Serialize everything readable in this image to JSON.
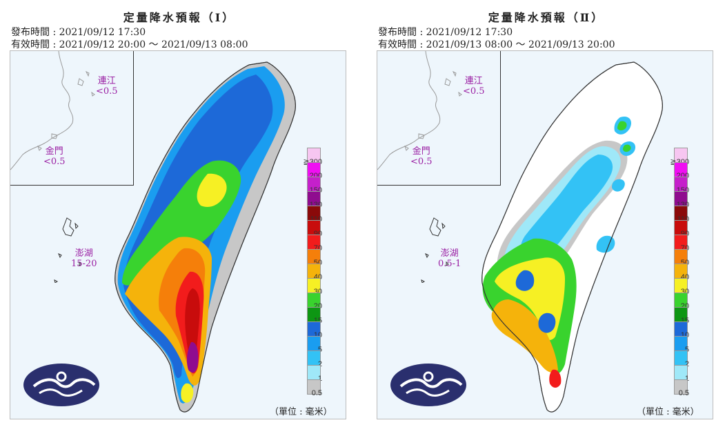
{
  "panels": [
    {
      "title": "定量降水預報（Ⅰ）",
      "issue": "發布時間 : 2021/09/12 17:30",
      "valid": "有效時間 : 2021/09/12 20:00 ～ 2021/09/13 08:00",
      "matsu_name": "連江",
      "matsu_value": "<0.5",
      "kinmen_name": "金門",
      "kinmen_value": "<0.5",
      "penghu_name": "澎湖",
      "penghu_value": "15-20",
      "unit": "（單位 : 毫米）"
    },
    {
      "title": "定量降水預報（Ⅱ）",
      "issue": "發布時間 : 2021/09/12 17:30",
      "valid": "有效時間 : 2021/09/13 08:00 ～ 2021/09/13 20:00",
      "matsu_name": "連江",
      "matsu_value": "<0.5",
      "kinmen_name": "金門",
      "kinmen_value": "<0.5",
      "penghu_name": "澎湖",
      "penghu_value": "0.5-1",
      "unit": "（單位 : 毫米）"
    }
  ],
  "legend": {
    "labels": [
      "≧300",
      "200",
      "150",
      "130",
      "110",
      "90",
      "70",
      "50",
      "40",
      "30",
      "20",
      "15",
      "10",
      "5",
      "2",
      "1",
      "0.5"
    ],
    "colors": [
      "#f7c6f1",
      "#f00ff2",
      "#c520cb",
      "#8f0c8f",
      "#8a0a0a",
      "#c80c0c",
      "#f21c1c",
      "#f57f0a",
      "#f5b30b",
      "#f6f024",
      "#39d32e",
      "#0d9613",
      "#1d69d8",
      "#1a9df0",
      "#33c2f5",
      "#9fe8f8",
      "#c7c7c7"
    ]
  },
  "colors": {
    "heavy_rain": "#f21c1c",
    "extreme_rain": "#8f0c8f",
    "logo_navy": "#2a2f6e"
  }
}
